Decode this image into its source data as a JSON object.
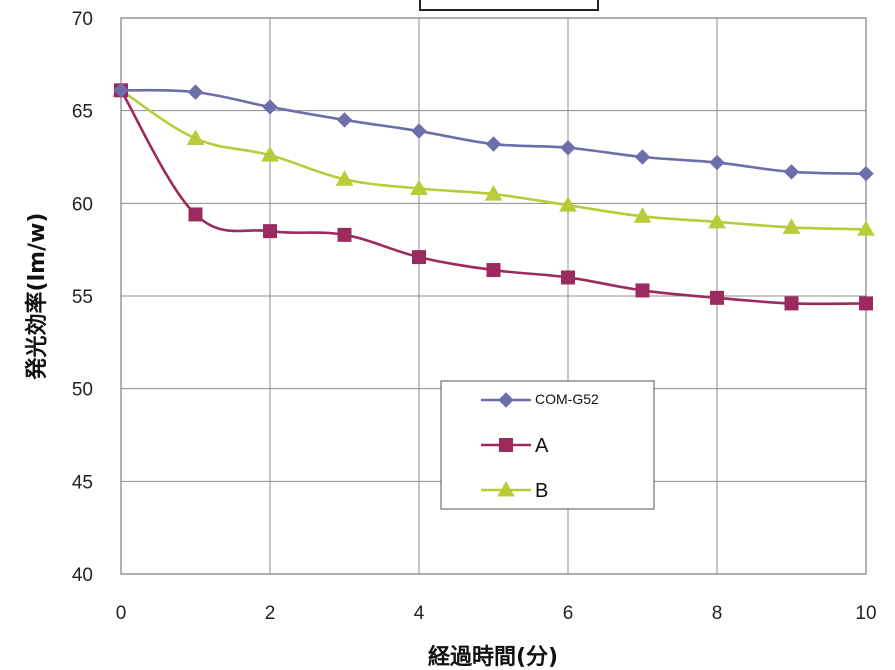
{
  "chart_data": {
    "type": "line",
    "title": "",
    "xlabel": "経過時間(分)",
    "ylabel": "発光効率(lm/w)",
    "xlim": [
      0,
      10
    ],
    "ylim": [
      40,
      70
    ],
    "x_ticks": [
      "0",
      "2",
      "4",
      "6",
      "8",
      "10"
    ],
    "y_ticks": [
      "40",
      "45",
      "50",
      "55",
      "60",
      "65",
      "70"
    ],
    "grid": true,
    "legend_position": "center",
    "x": [
      0,
      1,
      2,
      3,
      4,
      5,
      6,
      7,
      8,
      9,
      10
    ],
    "series": [
      {
        "name": "COM-G52",
        "color": "#6e6eaa",
        "marker": "diamond",
        "values": [
          66.1,
          66.0,
          65.2,
          64.5,
          63.9,
          63.2,
          63.0,
          62.5,
          62.2,
          61.7,
          61.6
        ]
      },
      {
        "name": "A",
        "color": "#9c2a5c",
        "marker": "square",
        "values": [
          66.1,
          59.4,
          58.5,
          58.3,
          57.1,
          56.4,
          56.0,
          55.3,
          54.9,
          54.6,
          54.6
        ]
      },
      {
        "name": "B",
        "color": "#b8cc3a",
        "marker": "triangle",
        "values": [
          66.1,
          63.5,
          62.6,
          61.3,
          60.8,
          60.5,
          59.9,
          59.3,
          59.0,
          58.7,
          58.6
        ]
      }
    ]
  }
}
